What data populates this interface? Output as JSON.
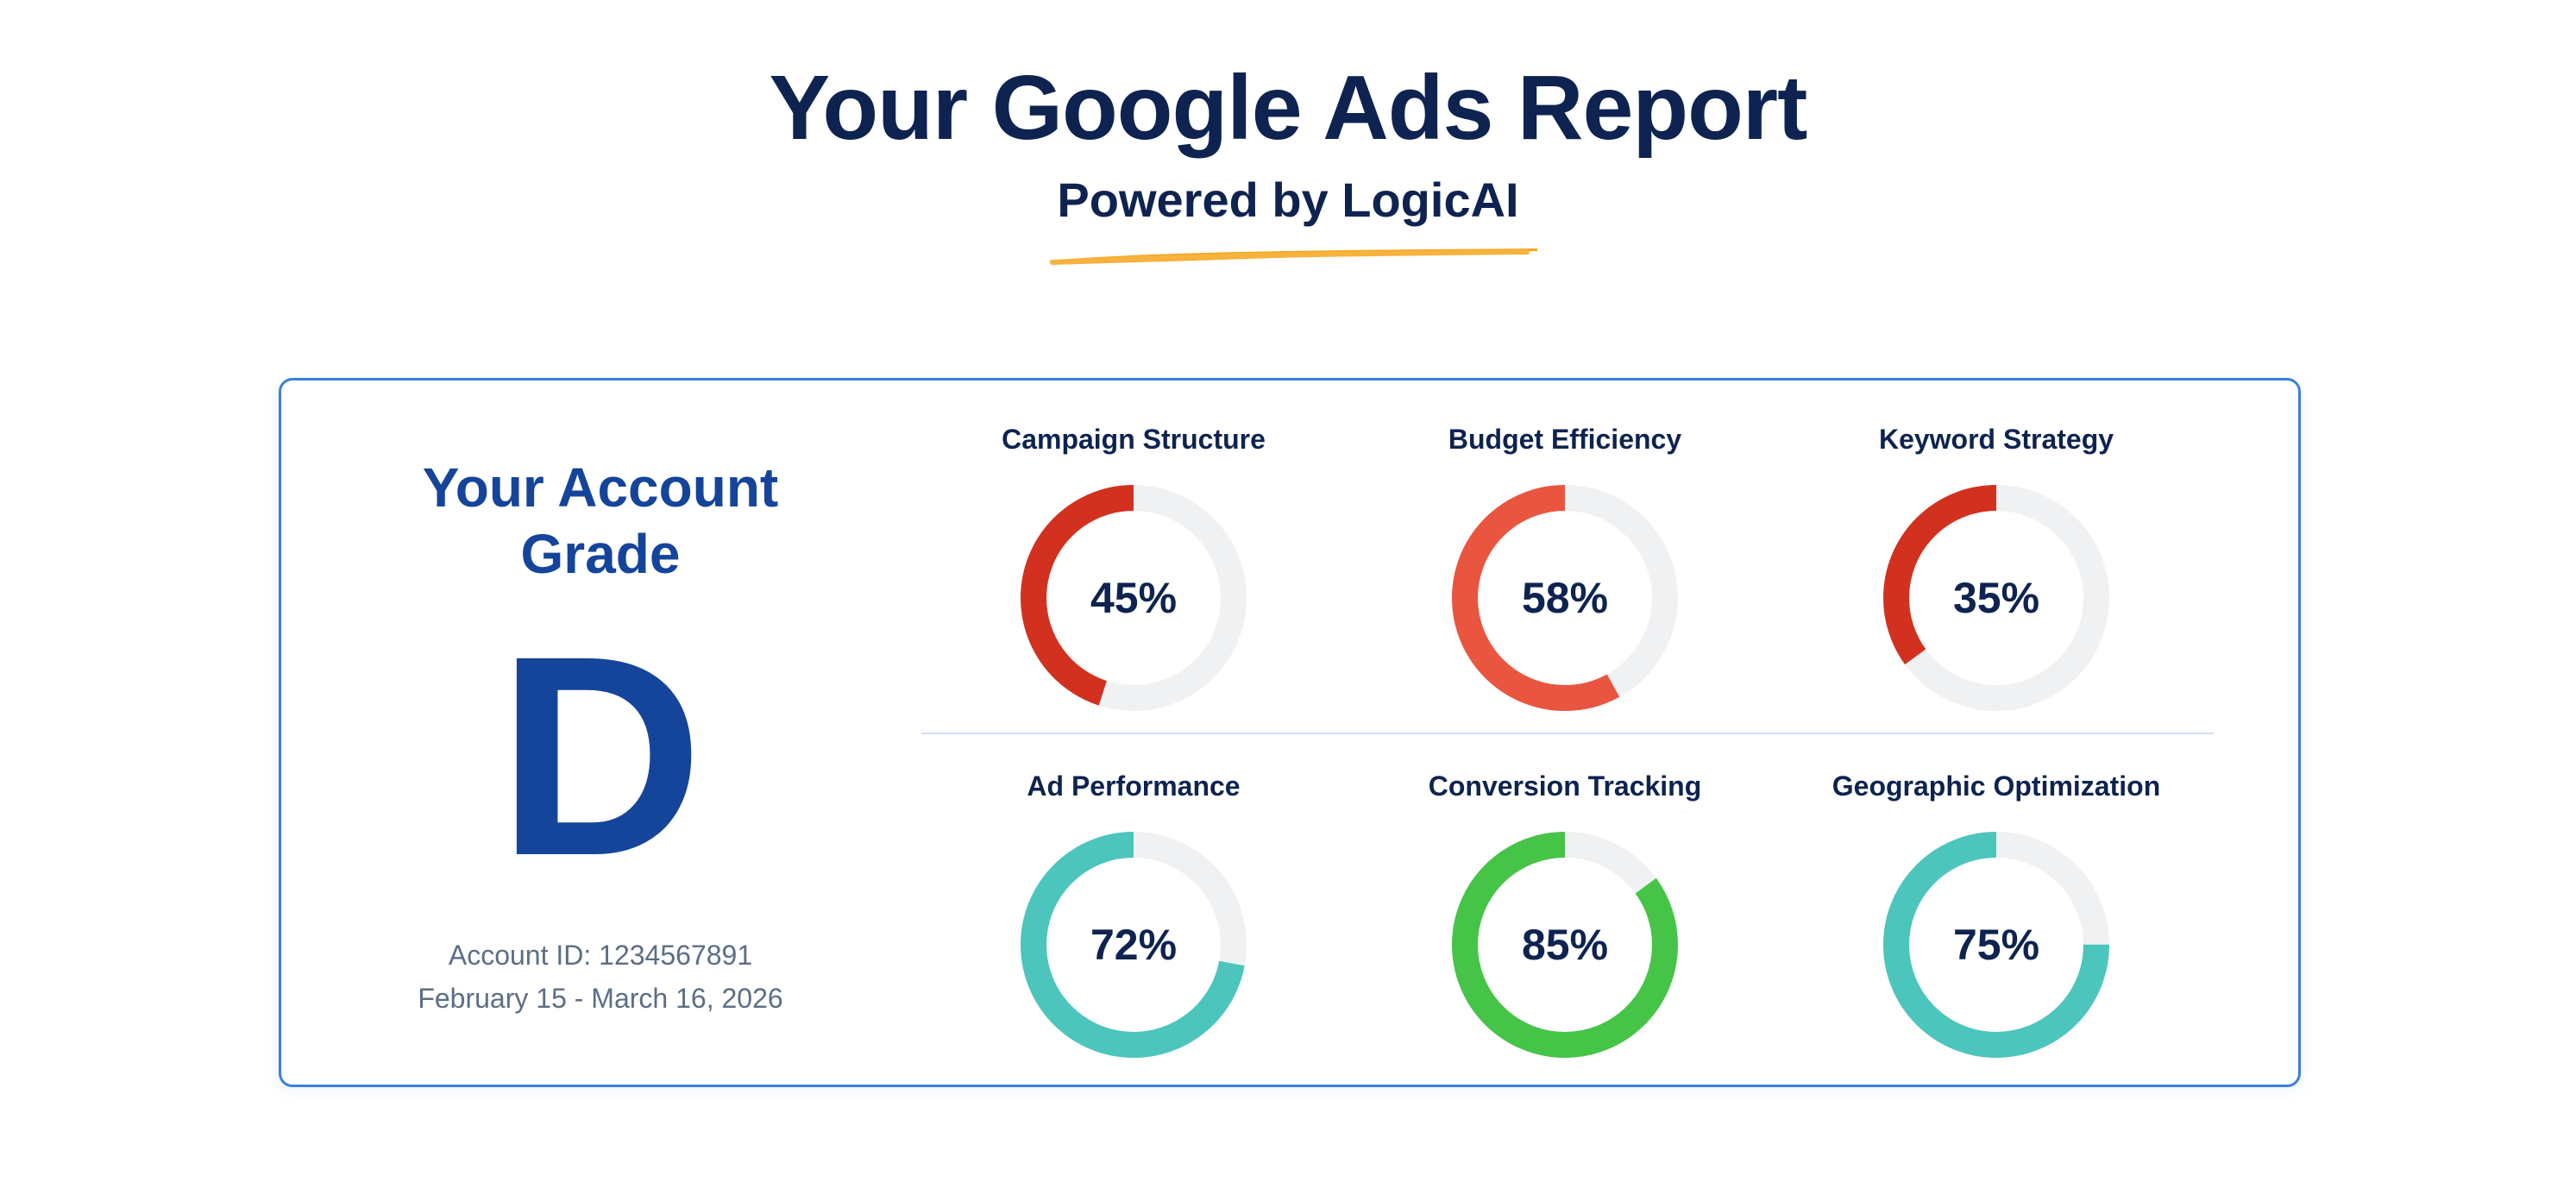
{
  "header": {
    "title": "Your Google Ads Report",
    "subtitle": "Powered by LogicAI",
    "underline_color": "#f5a623"
  },
  "grade": {
    "heading_line1": "Your Account",
    "heading_line2": "Grade",
    "letter": "D",
    "account_id": "Account ID: 1234567891",
    "date_range": "February 15 - March 16, 2026"
  },
  "colors": {
    "track": "#f0f1f3",
    "red": "#d2311f",
    "orange_red": "#ea5540",
    "teal": "#4cc5bd",
    "green": "#46c448",
    "navy": "#0e2350",
    "brand_blue": "#15449b",
    "border_blue": "#3c7ee0"
  },
  "metrics": [
    {
      "label": "Campaign Structure",
      "value": 45,
      "display": "45%",
      "color": "#d2311f"
    },
    {
      "label": "Budget Efficiency",
      "value": 58,
      "display": "58%",
      "color": "#ea5540"
    },
    {
      "label": "Keyword Strategy",
      "value": 35,
      "display": "35%",
      "color": "#d2311f"
    },
    {
      "label": "Ad Performance",
      "value": 72,
      "display": "72%",
      "color": "#4cc5bd"
    },
    {
      "label": "Conversion Tracking",
      "value": 85,
      "display": "85%",
      "color": "#46c448"
    },
    {
      "label": "Geographic Optimization",
      "value": 75,
      "display": "75%",
      "color": "#4cc5bd"
    }
  ]
}
